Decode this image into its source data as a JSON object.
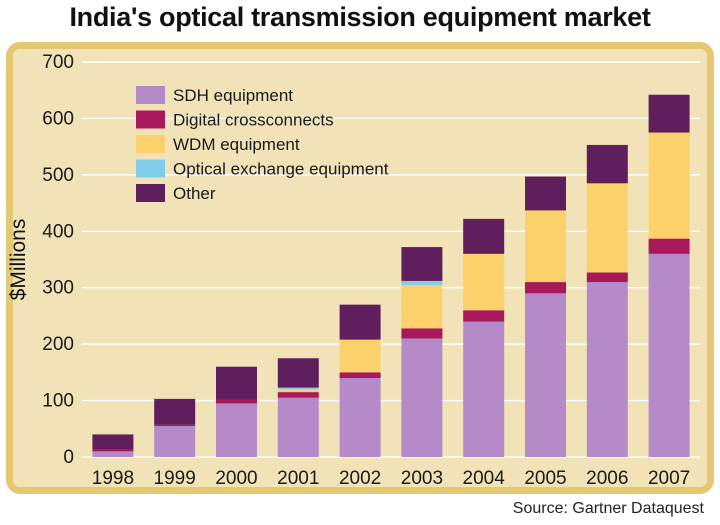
{
  "title": "India's optical transmission equipment market",
  "source": "Source: Gartner Dataquest",
  "chart_data": {
    "type": "bar",
    "stacked": true,
    "title": "India's optical transmission equipment market",
    "xlabel": "",
    "ylabel": "$Millions",
    "ylim": [
      0,
      700
    ],
    "yticks": [
      0,
      100,
      200,
      300,
      400,
      500,
      600,
      700
    ],
    "grid": true,
    "legend_position": "top-left",
    "categories": [
      "1998",
      "1999",
      "2000",
      "2001",
      "2002",
      "2003",
      "2004",
      "2005",
      "2006",
      "2007"
    ],
    "series": [
      {
        "name": "SDH equipment",
        "color": "#b48ac8",
        "values": [
          10,
          55,
          95,
          105,
          140,
          210,
          240,
          290,
          310,
          360
        ]
      },
      {
        "name": "Digital crossconnects",
        "color": "#a8185a",
        "values": [
          3,
          2,
          7,
          10,
          10,
          18,
          20,
          20,
          17,
          27
        ]
      },
      {
        "name": "WDM equipment",
        "color": "#fcd06a",
        "values": [
          0,
          0,
          0,
          5,
          58,
          77,
          100,
          127,
          158,
          188
        ]
      },
      {
        "name": "Optical exchange equipment",
        "color": "#7fcdea",
        "values": [
          0,
          0,
          0,
          3,
          0,
          7,
          0,
          0,
          0,
          0
        ]
      },
      {
        "name": "Other",
        "color": "#5e1f5c",
        "values": [
          27,
          46,
          58,
          52,
          62,
          60,
          62,
          60,
          68,
          67
        ]
      }
    ]
  }
}
